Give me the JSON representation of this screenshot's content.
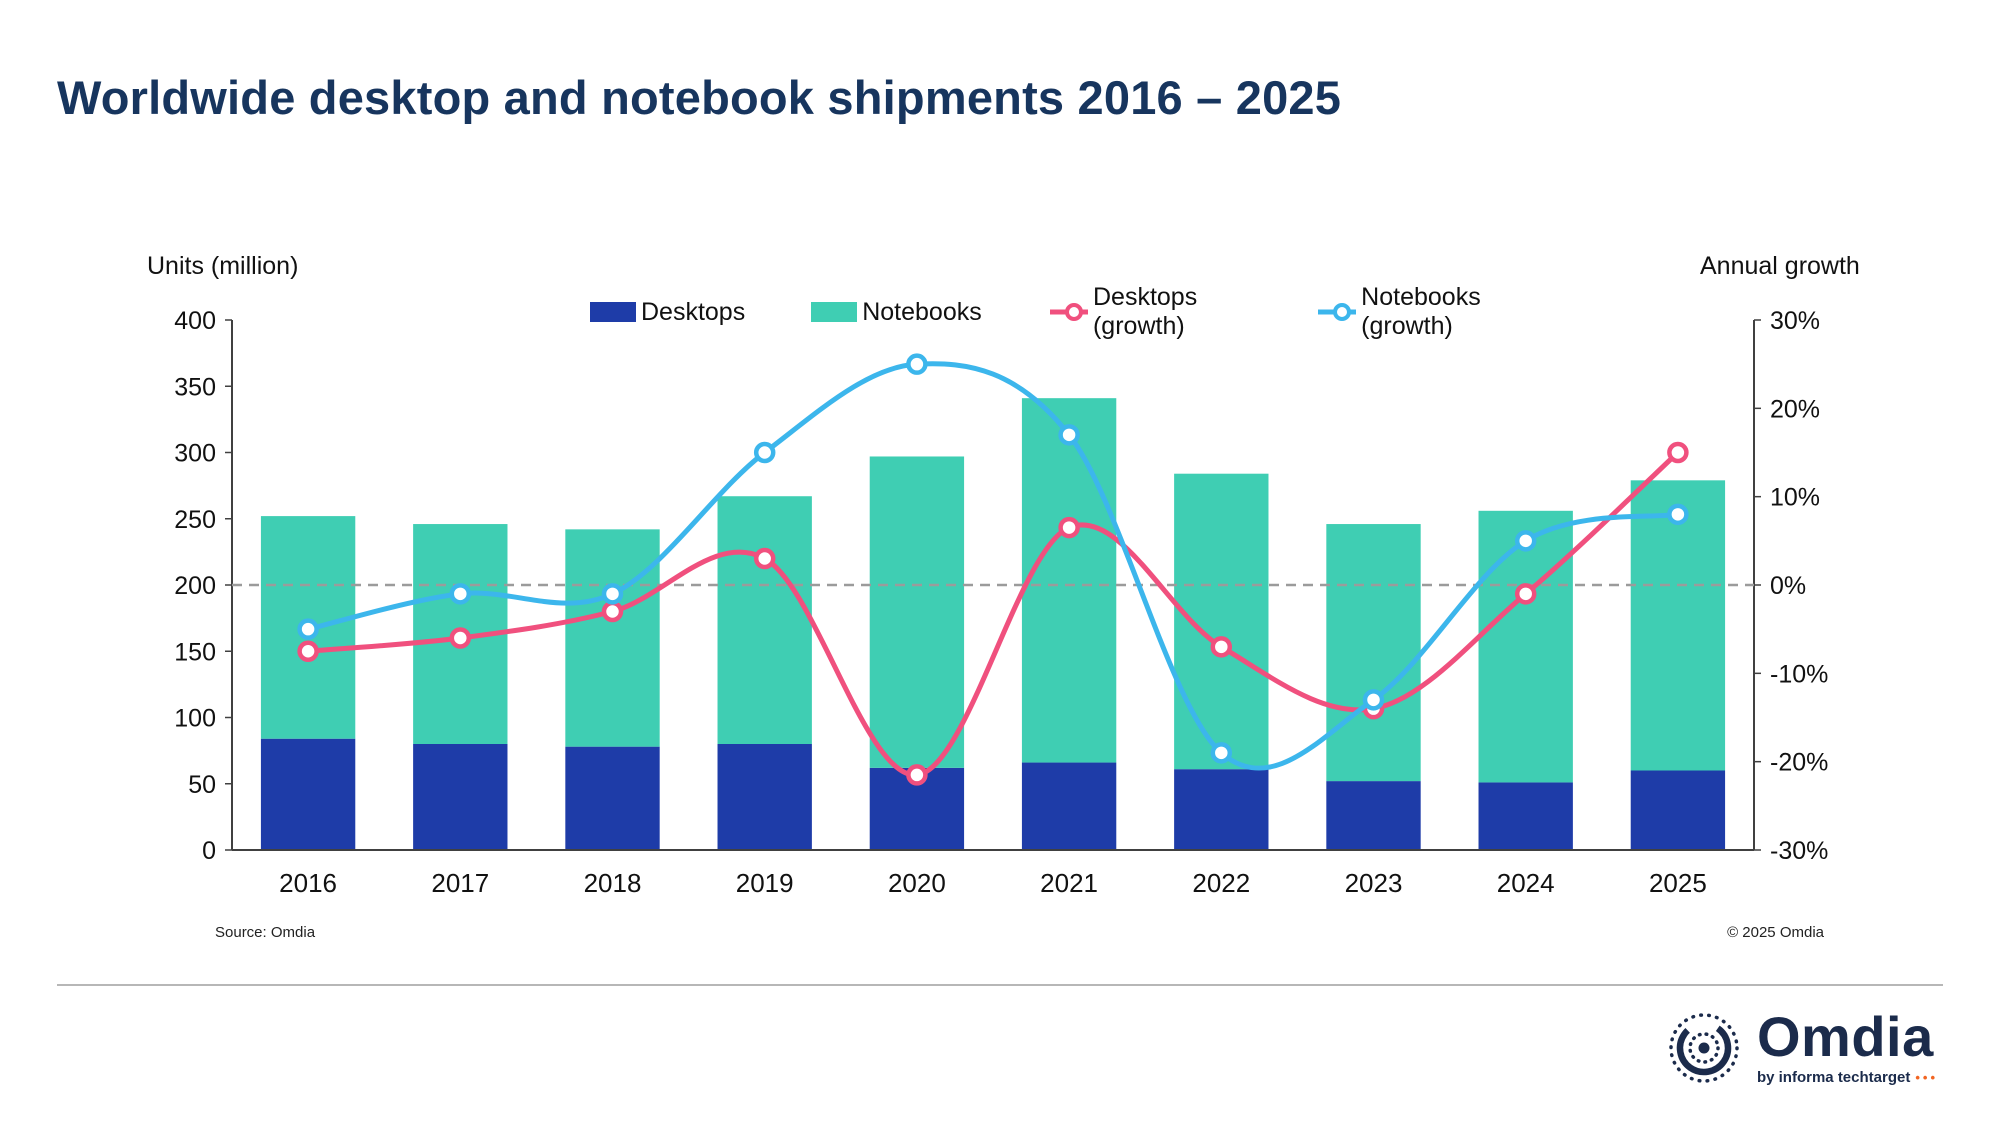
{
  "title": "Worldwide desktop and notebook shipments 2016 – 2025",
  "source": "Source: Omdia",
  "copyright": "© 2025 Omdia",
  "logo": {
    "name": "Omdia",
    "tagline": "by informa techtarget",
    "dots": "•••"
  },
  "colors": {
    "title": "#17355e",
    "desktop_bar": "#1e3ca8",
    "notebook_bar": "#3fceb3",
    "desktop_growth": "#f0507e",
    "notebook_growth": "#3cb6ec",
    "zero_line": "#9b9b9b"
  },
  "legend": [
    {
      "label": "Desktops",
      "type": "bar",
      "color": "#1e3ca8"
    },
    {
      "label": "Notebooks",
      "type": "bar",
      "color": "#3fceb3"
    },
    {
      "label": "Desktops (growth)",
      "type": "line",
      "color": "#f0507e"
    },
    {
      "label": "Notebooks (growth)",
      "type": "line",
      "color": "#3cb6ec"
    }
  ],
  "chart_data": {
    "type": "bar+line",
    "title": "Worldwide desktop and notebook shipments 2016 – 2025",
    "categories": [
      "2016",
      "2017",
      "2018",
      "2019",
      "2020",
      "2021",
      "2022",
      "2023",
      "2024",
      "2025"
    ],
    "bar_series": [
      {
        "name": "Desktops",
        "axis": "left",
        "color": "#1e3ca8",
        "values": [
          84,
          80,
          78,
          80,
          62,
          66,
          61,
          52,
          51,
          60
        ]
      },
      {
        "name": "Notebooks",
        "axis": "left",
        "color": "#3fceb3",
        "values": [
          168,
          166,
          164,
          187,
          235,
          275,
          223,
          194,
          205,
          219
        ]
      }
    ],
    "line_series": [
      {
        "name": "Desktops (growth)",
        "axis": "right",
        "color": "#f0507e",
        "values": [
          -7.5,
          -6,
          -3,
          3,
          -21.5,
          6.5,
          -7,
          -14,
          -1,
          15
        ]
      },
      {
        "name": "Notebooks (growth)",
        "axis": "right",
        "color": "#3cb6ec",
        "values": [
          -5,
          -1,
          -1,
          15,
          25,
          17,
          -19,
          -13,
          5,
          8
        ]
      }
    ],
    "left_axis": {
      "label": "Units (million)",
      "min": 0,
      "max": 400,
      "step": 50
    },
    "right_axis": {
      "label": "Annual growth",
      "min": -30,
      "max": 30,
      "step": 10,
      "unit": "%"
    },
    "zero_line": true,
    "grid": false,
    "stacked_bars": true,
    "legend_position": "top"
  }
}
